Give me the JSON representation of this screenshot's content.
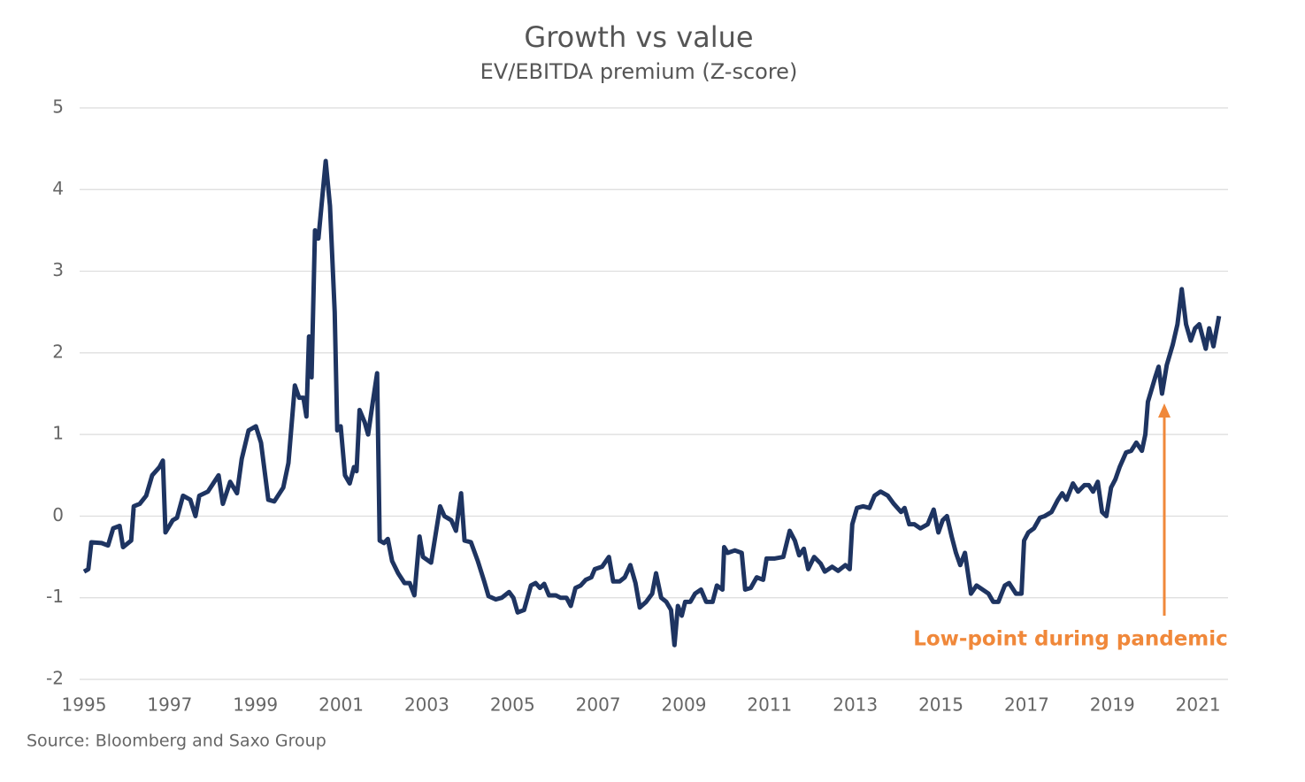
{
  "chart_data": {
    "type": "line",
    "title": "Growth vs value",
    "subtitle": "EV/EBITDA premium (Z-score)",
    "source": "Source: Bloomberg and Saxo Group",
    "annotation": "Low-point during pandemic",
    "color": "#1e3461",
    "annotation_color": "#f0883a",
    "grid": true,
    "xlim": [
      1995,
      2021.7
    ],
    "xticks": [
      1995,
      1997,
      1999,
      2001,
      2003,
      2005,
      2007,
      2009,
      2011,
      2013,
      2015,
      2017,
      2019,
      2021
    ],
    "ylim": [
      -2,
      5
    ],
    "yticks": [
      -2,
      -1,
      0,
      1,
      2,
      3,
      4,
      5
    ],
    "x": [
      1995.0,
      1995.1,
      1995.17,
      1995.41,
      1995.56,
      1995.68,
      1995.83,
      1995.91,
      1996.1,
      1996.16,
      1996.3,
      1996.45,
      1996.59,
      1996.76,
      1996.84,
      1996.9,
      1997.07,
      1997.17,
      1997.31,
      1997.48,
      1997.6,
      1997.69,
      1997.89,
      1998.14,
      1998.24,
      1998.41,
      1998.57,
      1998.68,
      1998.84,
      1999.01,
      1999.13,
      1999.3,
      1999.44,
      1999.65,
      1999.77,
      1999.92,
      2000.02,
      2000.12,
      2000.19,
      2000.25,
      2000.31,
      2000.39,
      2000.47,
      2000.64,
      2000.74,
      2000.85,
      2000.91,
      2000.99,
      2001.09,
      2001.2,
      2001.3,
      2001.36,
      2001.43,
      2001.55,
      2001.63,
      2001.74,
      2001.84,
      2001.9,
      2002.0,
      2002.09,
      2002.19,
      2002.33,
      2002.48,
      2002.6,
      2002.71,
      2002.83,
      2002.91,
      2003.1,
      2003.31,
      2003.41,
      2003.57,
      2003.68,
      2003.8,
      2003.88,
      2004.03,
      2004.19,
      2004.34,
      2004.44,
      2004.61,
      2004.75,
      2004.92,
      2005.02,
      2005.12,
      2005.27,
      2005.43,
      2005.54,
      2005.64,
      2005.74,
      2005.85,
      2006.01,
      2006.12,
      2006.26,
      2006.36,
      2006.47,
      2006.59,
      2006.71,
      2006.84,
      2006.92,
      2007.09,
      2007.25,
      2007.35,
      2007.5,
      2007.62,
      2007.75,
      2007.87,
      2007.97,
      2008.12,
      2008.26,
      2008.35,
      2008.47,
      2008.59,
      2008.7,
      2008.78,
      2008.86,
      2008.95,
      2009.03,
      2009.15,
      2009.26,
      2009.4,
      2009.52,
      2009.67,
      2009.77,
      2009.9,
      2009.94,
      2010.02,
      2010.19,
      2010.35,
      2010.43,
      2010.56,
      2010.7,
      2010.85,
      2010.93,
      2011.11,
      2011.32,
      2011.47,
      2011.59,
      2011.69,
      2011.8,
      2011.9,
      2012.04,
      2012.19,
      2012.29,
      2012.46,
      2012.6,
      2012.77,
      2012.87,
      2012.93,
      2013.04,
      2013.18,
      2013.33,
      2013.45,
      2013.59,
      2013.76,
      2013.9,
      2014.07,
      2014.15,
      2014.26,
      2014.38,
      2014.52,
      2014.69,
      2014.83,
      2014.94,
      2015.04,
      2015.14,
      2015.25,
      2015.35,
      2015.45,
      2015.56,
      2015.7,
      2015.83,
      2015.97,
      2016.11,
      2016.22,
      2016.34,
      2016.49,
      2016.59,
      2016.75,
      2016.88,
      2016.94,
      2017.04,
      2017.17,
      2017.31,
      2017.42,
      2017.58,
      2017.73,
      2017.83,
      2017.93,
      2018.08,
      2018.2,
      2018.35,
      2018.45,
      2018.55,
      2018.66,
      2018.76,
      2018.86,
      2018.97,
      2019.07,
      2019.17,
      2019.32,
      2019.44,
      2019.56,
      2019.69,
      2019.77,
      2019.83,
      2020.0,
      2020.08,
      2020.16,
      2020.27,
      2020.41,
      2020.52,
      2020.62,
      2020.72,
      2020.83,
      2020.93,
      2021.03,
      2021.18,
      2021.26,
      2021.36,
      2021.49
    ],
    "values": [
      -0.68,
      -0.65,
      -0.32,
      -0.33,
      -0.36,
      -0.15,
      -0.12,
      -0.38,
      -0.3,
      0.12,
      0.15,
      0.25,
      0.5,
      0.6,
      0.68,
      -0.2,
      -0.05,
      -0.02,
      0.25,
      0.2,
      0.0,
      0.25,
      0.3,
      0.5,
      0.15,
      0.42,
      0.28,
      0.7,
      1.05,
      1.1,
      0.9,
      0.2,
      0.18,
      0.35,
      0.65,
      1.6,
      1.45,
      1.45,
      1.22,
      2.2,
      1.7,
      3.5,
      3.4,
      4.35,
      3.8,
      2.5,
      1.05,
      1.1,
      0.5,
      0.4,
      0.6,
      0.55,
      1.3,
      1.15,
      1.0,
      1.4,
      1.75,
      -0.3,
      -0.33,
      -0.28,
      -0.55,
      -0.7,
      -0.82,
      -0.82,
      -0.97,
      -0.25,
      -0.5,
      -0.57,
      0.12,
      0.0,
      -0.05,
      -0.18,
      0.28,
      -0.3,
      -0.32,
      -0.55,
      -0.8,
      -0.98,
      -1.02,
      -1.0,
      -0.93,
      -1.0,
      -1.18,
      -1.15,
      -0.85,
      -0.82,
      -0.88,
      -0.83,
      -0.97,
      -0.97,
      -1.0,
      -1.0,
      -1.1,
      -0.88,
      -0.85,
      -0.78,
      -0.75,
      -0.65,
      -0.62,
      -0.5,
      -0.8,
      -0.8,
      -0.75,
      -0.6,
      -0.82,
      -1.12,
      -1.05,
      -0.95,
      -0.7,
      -1.0,
      -1.05,
      -1.15,
      -1.58,
      -1.1,
      -1.22,
      -1.05,
      -1.05,
      -0.95,
      -0.9,
      -1.05,
      -1.05,
      -0.85,
      -0.9,
      -0.38,
      -0.45,
      -0.42,
      -0.45,
      -0.9,
      -0.88,
      -0.75,
      -0.78,
      -0.52,
      -0.52,
      -0.5,
      -0.18,
      -0.3,
      -0.48,
      -0.4,
      -0.65,
      -0.5,
      -0.58,
      -0.68,
      -0.62,
      -0.67,
      -0.6,
      -0.65,
      -0.1,
      0.1,
      0.12,
      0.1,
      0.25,
      0.3,
      0.25,
      0.15,
      0.05,
      0.1,
      -0.1,
      -0.1,
      -0.15,
      -0.1,
      0.08,
      -0.2,
      -0.05,
      0.0,
      -0.25,
      -0.45,
      -0.6,
      -0.45,
      -0.95,
      -0.85,
      -0.9,
      -0.95,
      -1.05,
      -1.05,
      -0.85,
      -0.82,
      -0.95,
      -0.95,
      -0.3,
      -0.2,
      -0.15,
      -0.02,
      0.0,
      0.05,
      0.2,
      0.28,
      0.2,
      0.4,
      0.3,
      0.38,
      0.38,
      0.3,
      0.42,
      0.05,
      0.0,
      0.35,
      0.45,
      0.6,
      0.78,
      0.8,
      0.9,
      0.8,
      1.0,
      1.4,
      1.7,
      1.83,
      1.5,
      1.85,
      2.1,
      2.35,
      2.78,
      2.35,
      2.15,
      2.3,
      2.35,
      2.05,
      2.3,
      2.08,
      2.45
    ]
  }
}
